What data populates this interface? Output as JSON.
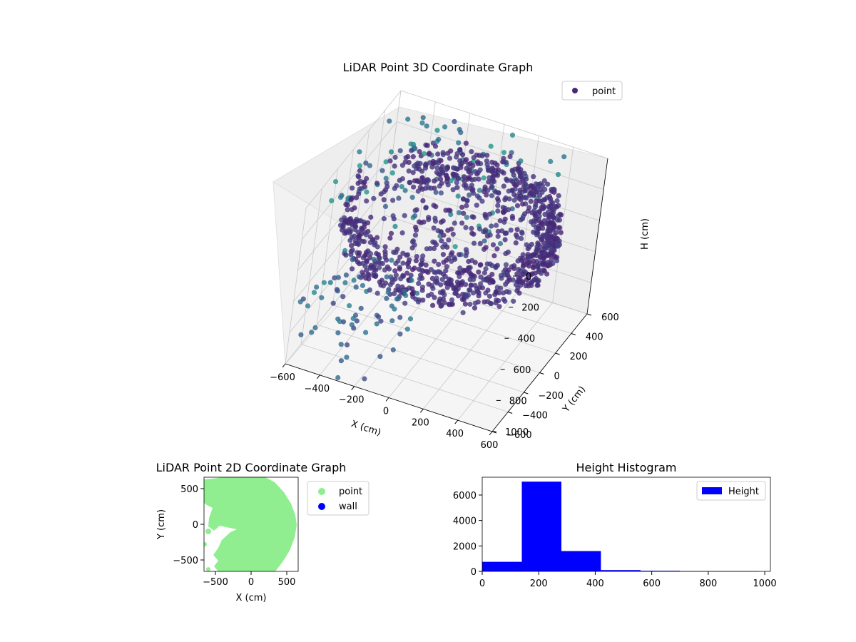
{
  "chart_data": [
    {
      "type": "scatter3d",
      "title": "LiDAR Point 3D Coordinate Graph",
      "xlabel": "X (cm)",
      "ylabel": "Y (cm)",
      "zlabel": "H (cm)",
      "xlim": [
        -600,
        600
      ],
      "ylim": [
        -600,
        600
      ],
      "zlim": [
        1000,
        0
      ],
      "xticks": [
        "−600",
        "−400",
        "−200",
        "0",
        "200",
        "400",
        "600"
      ],
      "yticks": [
        "−600",
        "−400",
        "−200",
        "0",
        "200",
        "400",
        "600"
      ],
      "zticks": [
        "0",
        "200",
        "400",
        "600",
        "800",
        "1000"
      ],
      "legend": [
        {
          "label": "point",
          "color": "#482878"
        }
      ],
      "legend_loc": "upper right",
      "colormap": "viridis",
      "description_series": {
        "ring_radius_cm": 580,
        "main_height_band_cm": [
          150,
          420
        ],
        "sparse_high_points_height_cm": [
          0,
          150
        ],
        "sparse_low_points_height_cm": [
          600,
          1000
        ]
      }
    },
    {
      "type": "scatter",
      "title": "LiDAR Point 2D Coordinate Graph",
      "xlabel": "X (cm)",
      "ylabel": "Y (cm)",
      "xlim": [
        -660,
        660
      ],
      "ylim": [
        -660,
        660
      ],
      "xticks": [
        "−500",
        "0",
        "500"
      ],
      "yticks": [
        "500",
        "0",
        "−500"
      ],
      "legend": [
        {
          "label": "point",
          "color": "#90ee90"
        },
        {
          "label": "wall",
          "color": "#0000ff"
        }
      ],
      "legend_loc": "outside right"
    },
    {
      "type": "histogram",
      "title": "Height Histogram",
      "xlabel": "",
      "ylabel": "",
      "bins": [
        0,
        140,
        280,
        420,
        560,
        700,
        840,
        980
      ],
      "counts": [
        750,
        7050,
        1600,
        100,
        50,
        10,
        10
      ],
      "xlim": [
        0,
        1020
      ],
      "ylim": [
        0,
        7400
      ],
      "xticks": [
        0,
        200,
        400,
        600,
        800,
        1000
      ],
      "yticks": [
        0,
        2000,
        4000,
        6000
      ],
      "legend": [
        {
          "label": "Height",
          "color": "#0000ff"
        }
      ],
      "legend_loc": "upper right",
      "bar_color": "#0000ff"
    }
  ]
}
